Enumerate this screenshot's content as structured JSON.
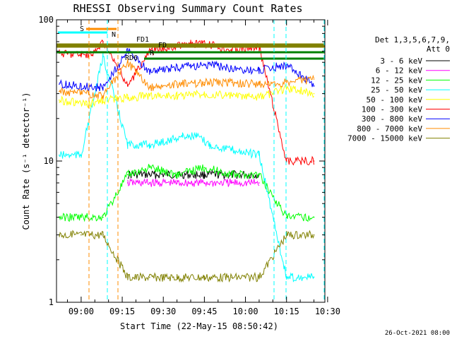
{
  "chart_data": {
    "type": "line",
    "title": "RHESSI Observing Summary Count Rates",
    "xlabel": "Start Time (22-May-15 08:50:42)",
    "ylabel": "Count Rate (s⁻¹ detector⁻¹)",
    "y_scale": "log",
    "ylim": [
      1,
      100
    ],
    "xlim": [
      "08:51",
      "10:29"
    ],
    "x_tick_labels": [
      "09:00",
      "09:15",
      "09:30",
      "09:45",
      "10:00",
      "10:15",
      "10:30"
    ],
    "y_tick_labels": [
      "1",
      "10",
      "100"
    ],
    "legend_header": [
      "Det 1,3,5,6,7,9,",
      "Att 0"
    ],
    "legend_position": "right",
    "series": [
      {
        "name": "3 - 6 keV",
        "color": "#000000",
        "x": [
          "09:17",
          "09:25",
          "09:35",
          "09:45",
          "09:55",
          "10:05"
        ],
        "y": [
          8,
          8,
          8,
          8,
          8,
          8
        ]
      },
      {
        "name": "6 - 12 keV",
        "color": "#ff00ff",
        "x": [
          "09:17",
          "09:25",
          "09:35",
          "09:45",
          "09:55",
          "10:05"
        ],
        "y": [
          7,
          7,
          7,
          7,
          7,
          7
        ]
      },
      {
        "name": "12 - 25 keV",
        "color": "#00ff00",
        "x": [
          "08:52",
          "09:00",
          "09:08",
          "09:17",
          "09:25",
          "09:35",
          "09:45",
          "09:55",
          "10:05",
          "10:15",
          "10:25"
        ],
        "y": [
          4,
          4,
          4,
          8,
          9,
          8,
          9,
          8,
          8,
          4,
          4
        ]
      },
      {
        "name": "25 - 50 keV",
        "color": "#00ffff",
        "x": [
          "08:52",
          "08:56",
          "09:00",
          "09:08",
          "09:17",
          "09:25",
          "09:32",
          "09:37",
          "09:42",
          "09:47",
          "09:55",
          "10:05",
          "10:15",
          "10:25"
        ],
        "y": [
          11,
          11,
          11,
          55,
          13,
          13,
          14,
          15,
          15,
          13,
          12,
          11,
          1.5,
          1.5
        ]
      },
      {
        "name": "50 - 100 keV",
        "color": "#ffff00",
        "x": [
          "08:52",
          "08:58",
          "09:02",
          "09:08",
          "09:17",
          "09:25",
          "09:35",
          "09:45",
          "09:55",
          "10:05",
          "10:15",
          "10:25"
        ],
        "y": [
          27,
          26,
          25,
          27,
          28,
          29,
          29,
          30,
          29,
          28,
          33,
          30
        ]
      },
      {
        "name": "100 - 300 keV",
        "color": "#ff0000",
        "x": [
          "08:52",
          "09:00",
          "09:04",
          "09:08",
          "09:17",
          "09:25",
          "09:35",
          "09:40",
          "09:45",
          "09:55",
          "10:05",
          "10:15",
          "10:25"
        ],
        "y": [
          58,
          57,
          56,
          70,
          34,
          60,
          65,
          68,
          67,
          62,
          64,
          10,
          10
        ]
      },
      {
        "name": "300 - 800 keV",
        "color": "#0000ff",
        "x": [
          "08:52",
          "09:00",
          "09:08",
          "09:17",
          "09:25",
          "09:32",
          "09:40",
          "09:47",
          "09:55",
          "10:05",
          "10:15",
          "10:25"
        ],
        "y": [
          35,
          34,
          33,
          60,
          43,
          45,
          47,
          48,
          45,
          44,
          48,
          34
        ]
      },
      {
        "name": "800 - 7000 keV",
        "color": "#ff8c00",
        "x": [
          "08:52",
          "09:00",
          "09:08",
          "09:17",
          "09:25",
          "09:35",
          "09:45",
          "09:55",
          "10:05",
          "10:15",
          "10:25"
        ],
        "y": [
          31,
          30,
          29,
          50,
          33,
          35,
          36,
          36,
          35,
          36,
          38
        ]
      },
      {
        "name": "7000 - 15000 keV",
        "color": "#808000",
        "x": [
          "08:52",
          "09:00",
          "09:08",
          "09:17",
          "09:25",
          "09:35",
          "09:45",
          "09:55",
          "10:05",
          "10:15",
          "10:25"
        ],
        "y": [
          3,
          3,
          3,
          1.5,
          1.5,
          1.5,
          1.5,
          1.5,
          1.5,
          3,
          3
        ]
      }
    ],
    "markers": [
      {
        "label": "S",
        "color": "#ff8c00"
      },
      {
        "label": "N",
        "color": "#00ffff"
      },
      {
        "label": "FD1",
        "color": "#808000"
      },
      {
        "label": "FD",
        "color": "#808000"
      },
      {
        "label": "RD6",
        "color": "#008000"
      },
      {
        "label": "R",
        "color": "#008000"
      }
    ],
    "footer_date": "26-Oct-2021 08:00",
    "grid": false
  }
}
